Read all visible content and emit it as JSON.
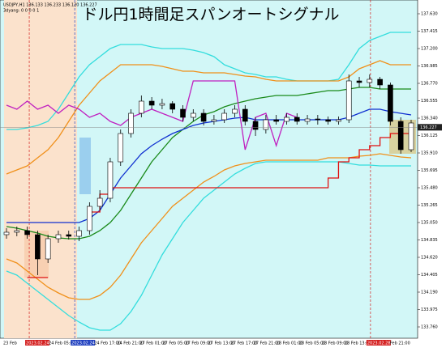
{
  "chart_data": {
    "type": "candlestick",
    "title": "ドル円1時間足スパンオートシグナル",
    "header": [
      "USDJPY,H1  136.133 136.233 136.120 136.227",
      "3dyang: 0 0 0 0 1"
    ],
    "ylim": [
      133.62,
      137.8
    ],
    "yticks": [
      {
        "value": 137.63,
        "label": "137.630"
      },
      137.415,
      {
        "value": 137.2,
        "label": "137.200"
      },
      136.985,
      {
        "value": 136.77,
        "label": "136.770"
      },
      136.555,
      {
        "value": 136.34,
        "label": "136.340"
      },
      136.125,
      {
        "value": 135.91,
        "label": "135.910"
      },
      135.695,
      {
        "value": 135.48,
        "label": "135.480"
      },
      135.265,
      {
        "value": 135.05,
        "label": "135.050"
      },
      134.835,
      {
        "value": 134.62,
        "label": "134.620"
      },
      134.405,
      {
        "value": 134.19,
        "label": "134.190"
      },
      133.975,
      {
        "value": 133.76,
        "label": "133.760"
      }
    ],
    "current_price": 136.227,
    "x_labels": [
      {
        "label": "23 Feb"
      },
      {
        "label": "2023.02.24 01:00",
        "highlight": "#d42020"
      },
      {
        "label": "24 Feb 05:00"
      },
      {
        "label": "2023.02.24 13:00",
        "highlight": "#2040c0"
      },
      {
        "label": "24 Feb 17:00"
      },
      {
        "label": "24 Feb 21:00"
      },
      {
        "label": "27 Feb 01:00"
      },
      {
        "label": "27 Feb 05:00"
      },
      {
        "label": "27 Feb 09:00"
      },
      {
        "label": "27 Feb 13:00"
      },
      {
        "label": "27 Feb 17:00"
      },
      {
        "label": "27 Feb 21:00"
      },
      {
        "label": "28 Feb 01:00"
      },
      {
        "label": "28 Feb 05:00"
      },
      {
        "label": "28 Feb 09:00"
      },
      {
        "label": "28 Feb 13:00"
      },
      {
        "label": "2023.02.28 18:00",
        "highlight": "#d42020"
      },
      {
        "label": "Feb 21:00"
      }
    ],
    "open": [
      134.9,
      134.93,
      134.95,
      134.9,
      134.6,
      134.85,
      134.9,
      134.88,
      134.95,
      135.25,
      135.35,
      135.8,
      136.15,
      136.4,
      136.55,
      136.5,
      136.52,
      136.45,
      136.35,
      136.4,
      136.3,
      136.32,
      136.4,
      136.45,
      136.3,
      136.2,
      136.32,
      136.3,
      136.35,
      136.3,
      136.33,
      136.32,
      136.3,
      136.32,
      136.8,
      136.78,
      136.82,
      136.75,
      136.3,
      135.95
    ],
    "high": [
      134.98,
      135.0,
      135.0,
      134.95,
      134.9,
      134.95,
      134.95,
      135.0,
      135.3,
      135.45,
      135.85,
      136.2,
      136.45,
      136.62,
      136.6,
      136.58,
      136.55,
      136.5,
      136.45,
      136.45,
      136.38,
      136.45,
      136.5,
      136.5,
      136.35,
      136.38,
      136.38,
      136.4,
      136.4,
      136.38,
      136.38,
      136.36,
      136.36,
      136.88,
      136.85,
      136.88,
      136.85,
      136.78,
      136.35,
      136.32
    ],
    "low": [
      134.85,
      134.88,
      134.85,
      134.4,
      134.55,
      134.8,
      134.84,
      134.82,
      134.9,
      135.2,
      135.3,
      135.75,
      136.1,
      136.35,
      136.45,
      136.45,
      136.4,
      136.3,
      136.3,
      136.25,
      136.26,
      136.28,
      136.35,
      136.25,
      136.12,
      136.15,
      136.26,
      136.26,
      136.26,
      136.26,
      136.26,
      136.26,
      136.26,
      136.28,
      136.72,
      136.72,
      136.7,
      136.25,
      135.9,
      135.92
    ],
    "close": [
      134.93,
      134.95,
      134.9,
      134.6,
      134.85,
      134.9,
      134.88,
      134.95,
      135.25,
      135.35,
      135.8,
      136.15,
      136.4,
      136.55,
      136.5,
      136.52,
      136.45,
      136.35,
      136.4,
      136.3,
      136.32,
      136.4,
      136.45,
      136.3,
      136.2,
      136.32,
      136.3,
      136.35,
      136.3,
      136.33,
      136.32,
      136.3,
      136.32,
      136.8,
      136.78,
      136.82,
      136.75,
      136.3,
      135.95,
      136.28
    ],
    "series": [
      {
        "color": "#33dddd",
        "values": [
          136.2,
          136.2,
          136.22,
          136.25,
          136.3,
          136.45,
          136.65,
          136.85,
          137.0,
          137.1,
          137.2,
          137.25,
          137.25,
          137.25,
          137.22,
          137.2,
          137.2,
          137.2,
          137.18,
          137.15,
          137.1,
          137.0,
          136.95,
          136.9,
          136.88,
          136.85,
          136.85,
          136.82,
          136.8,
          136.8,
          136.8,
          136.8,
          136.82,
          137.0,
          137.2,
          137.3,
          137.35,
          137.4,
          137.4,
          137.4
        ]
      },
      {
        "color": "#33dddd",
        "values": [
          134.45,
          134.4,
          134.3,
          134.2,
          134.1,
          134.0,
          133.9,
          133.82,
          133.75,
          133.72,
          133.72,
          133.8,
          133.95,
          134.15,
          134.4,
          134.65,
          134.85,
          135.05,
          135.2,
          135.35,
          135.45,
          135.55,
          135.65,
          135.72,
          135.78,
          135.8,
          135.8,
          135.8,
          135.8,
          135.8,
          135.8,
          135.8,
          135.8,
          135.78,
          135.76,
          135.76,
          135.75,
          135.75,
          135.75,
          135.75
        ]
      },
      {
        "color": "#f0901a",
        "values": [
          135.65,
          135.7,
          135.75,
          135.85,
          135.95,
          136.1,
          136.3,
          136.5,
          136.65,
          136.8,
          136.9,
          137.0,
          137.0,
          137.0,
          137.0,
          136.98,
          136.95,
          136.92,
          136.92,
          136.9,
          136.9,
          136.9,
          136.88,
          136.86,
          136.85,
          136.82,
          136.8,
          136.8,
          136.8,
          136.8,
          136.8,
          136.8,
          136.8,
          136.85,
          136.95,
          137.0,
          137.05,
          137.0,
          137.0,
          137.0
        ]
      },
      {
        "color": "#f0901a",
        "values": [
          134.6,
          134.55,
          134.45,
          134.35,
          134.25,
          134.18,
          134.12,
          134.1,
          134.1,
          134.15,
          134.25,
          134.4,
          134.6,
          134.8,
          134.95,
          135.1,
          135.25,
          135.35,
          135.45,
          135.55,
          135.62,
          135.7,
          135.75,
          135.78,
          135.8,
          135.82,
          135.82,
          135.82,
          135.82,
          135.82,
          135.82,
          135.85,
          135.85,
          135.85,
          135.87,
          135.88,
          135.9,
          135.88,
          135.86,
          135.85
        ]
      },
      {
        "color": "#1a8a1a",
        "values": [
          135.0,
          134.98,
          134.95,
          134.92,
          134.88,
          134.86,
          134.85,
          134.85,
          134.88,
          134.95,
          135.05,
          135.2,
          135.4,
          135.6,
          135.8,
          135.95,
          136.1,
          136.2,
          136.3,
          136.38,
          136.42,
          136.48,
          136.52,
          136.55,
          136.58,
          136.6,
          136.62,
          136.62,
          136.62,
          136.64,
          136.66,
          136.68,
          136.68,
          136.7,
          136.72,
          136.72,
          136.7,
          136.7,
          136.7,
          136.7
        ]
      },
      {
        "color": "#1030d0",
        "values": [
          135.05,
          135.05,
          135.05,
          135.05,
          135.05,
          135.05,
          135.05,
          135.05,
          135.1,
          135.2,
          135.4,
          135.6,
          135.75,
          135.9,
          136.0,
          136.08,
          136.15,
          136.2,
          136.25,
          136.28,
          136.3,
          136.32,
          136.34,
          136.35,
          136.32,
          136.32,
          136.32,
          136.32,
          136.32,
          136.32,
          136.32,
          136.32,
          136.32,
          136.35,
          136.4,
          136.45,
          136.45,
          136.42,
          136.4,
          136.38
        ]
      },
      {
        "color": "#e01010",
        "step": true,
        "values": [
          null,
          null,
          134.37,
          134.37,
          134.37,
          null,
          null,
          null,
          135.18,
          135.4,
          135.48,
          135.48,
          135.48,
          135.48,
          135.48,
          135.48,
          135.48,
          135.48,
          135.48,
          135.48,
          135.48,
          135.48,
          135.48,
          135.48,
          135.48,
          135.48,
          135.48,
          135.48,
          135.48,
          135.48,
          135.48,
          135.6,
          135.8,
          135.85,
          135.95,
          136.0,
          136.1,
          136.15,
          136.15,
          136.15
        ]
      },
      {
        "color": "#c020c0",
        "values": [
          136.5,
          136.45,
          136.55,
          136.45,
          136.5,
          136.4,
          136.5,
          136.45,
          136.35,
          136.4,
          136.3,
          136.25,
          136.35,
          136.4,
          136.45,
          136.4,
          136.35,
          136.3,
          136.8,
          136.8,
          136.8,
          136.8,
          136.8,
          135.95,
          136.35,
          136.4,
          136.0,
          136.4,
          136.35,
          null,
          null,
          null,
          null,
          null,
          null,
          null,
          null,
          null,
          null,
          null
        ]
      }
    ]
  }
}
